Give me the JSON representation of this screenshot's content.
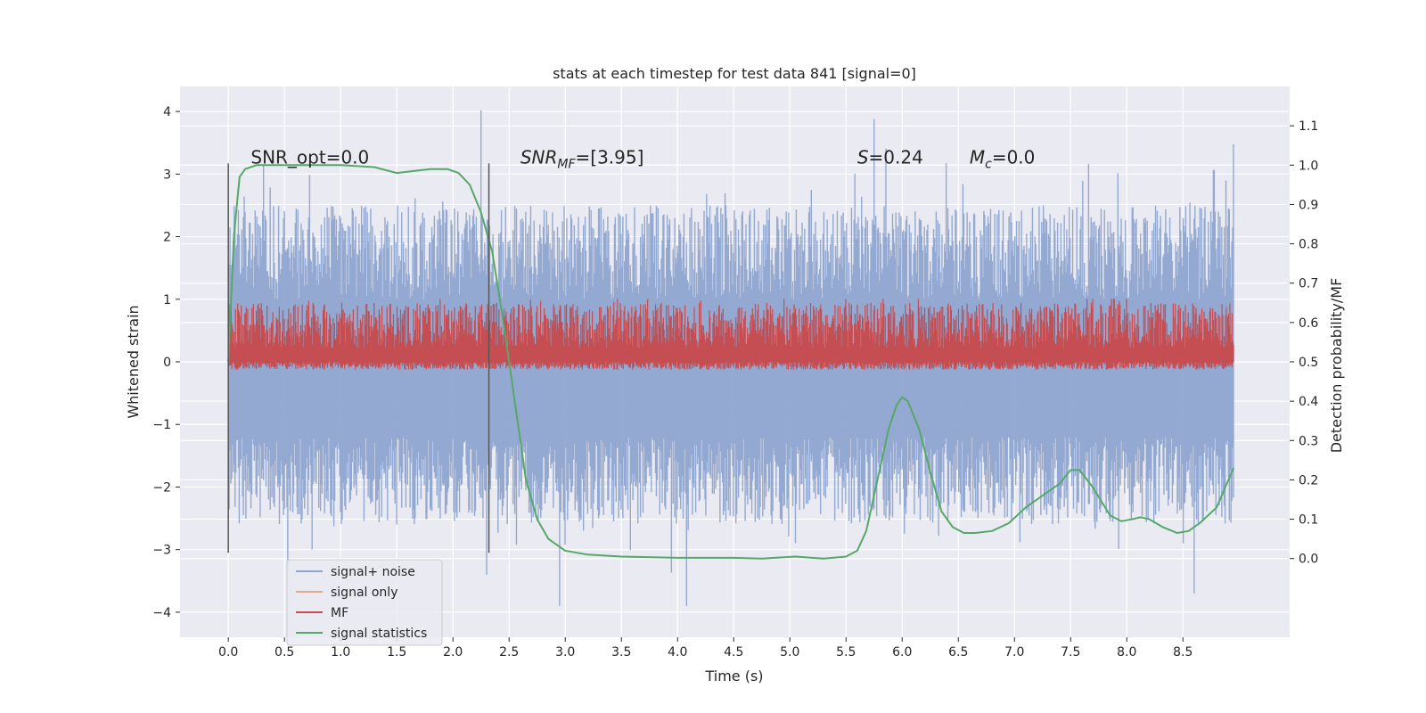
{
  "chart_data": {
    "type": "line",
    "title": "stats at each timestep for test data 841 [signal=0]",
    "xlabel": "Time (s)",
    "ylabel_left": "Whitened strain",
    "ylabel_right": "Detection probability/MF",
    "xlim": [
      -0.43,
      9.45
    ],
    "ylim_left": [
      -4.4,
      4.4
    ],
    "ylim_right": [
      -0.2,
      1.2
    ],
    "x_ticks": [
      0.0,
      0.5,
      1.0,
      1.5,
      2.0,
      2.5,
      3.0,
      3.5,
      4.0,
      4.5,
      5.0,
      5.5,
      6.0,
      6.5,
      7.0,
      7.5,
      8.0,
      8.5
    ],
    "x_tick_labels": [
      "0.0",
      "0.5",
      "1.0",
      "1.5",
      "2.0",
      "2.5",
      "3.0",
      "3.5",
      "4.0",
      "4.5",
      "5.0",
      "5.5",
      "6.0",
      "6.5",
      "7.0",
      "7.5",
      "8.0",
      "8.5"
    ],
    "y_left_ticks": [
      4,
      3,
      2,
      1,
      0,
      -1,
      -2,
      -3,
      -4
    ],
    "y_left_tick_labels": [
      "4",
      "3",
      "2",
      "1",
      "0",
      "−1",
      "−2",
      "−3",
      "−4"
    ],
    "y_right_ticks": [
      1.1,
      1.0,
      0.9,
      0.8,
      0.7,
      0.6,
      0.5,
      0.4,
      0.3,
      0.2,
      0.1,
      0.0
    ],
    "y_right_tick_labels": [
      "1.1",
      "1.0",
      "0.9",
      "0.8",
      "0.7",
      "0.6",
      "0.5",
      "0.4",
      "0.3",
      "0.2",
      "0.1",
      "0.0"
    ],
    "grid": true,
    "noise_series": {
      "name": "signal+ noise",
      "color": "#8fa5cf",
      "x_range": [
        0.0,
        8.95
      ],
      "band_upper_approx": [
        1.0,
        2.5
      ],
      "band_lower_approx": [
        -2.6,
        -1.2
      ],
      "spikes": [
        [
          2.25,
          4.02
        ],
        [
          5.75,
          3.88
        ],
        [
          8.95,
          3.48
        ],
        [
          2.3,
          -3.4
        ],
        [
          4.08,
          -3.9
        ],
        [
          2.95,
          -3.9
        ],
        [
          8.6,
          -3.7
        ]
      ]
    },
    "signal_only_series": {
      "name": "signal only",
      "color": "#e8a68a",
      "value": 0
    },
    "mf_series": {
      "name": "MF",
      "color": "#c44e52",
      "x_range": [
        0.0,
        8.95
      ],
      "range_right_axis": [
        0.48,
        0.65
      ]
    },
    "signal_statistics_series": {
      "name": "signal statistics",
      "color": "#55a868",
      "x": [
        0.0,
        0.05,
        0.1,
        0.15,
        0.25,
        0.5,
        1.0,
        1.3,
        1.5,
        1.65,
        1.8,
        1.95,
        2.05,
        2.15,
        2.25,
        2.35,
        2.45,
        2.55,
        2.65,
        2.75,
        2.85,
        3.0,
        3.2,
        3.5,
        4.0,
        4.5,
        4.75,
        5.05,
        5.3,
        5.5,
        5.6,
        5.68,
        5.78,
        5.88,
        5.95,
        6.0,
        6.05,
        6.15,
        6.25,
        6.35,
        6.45,
        6.55,
        6.65,
        6.8,
        6.95,
        7.1,
        7.25,
        7.4,
        7.5,
        7.58,
        7.7,
        7.85,
        7.95,
        8.05,
        8.12,
        8.2,
        8.32,
        8.45,
        8.55,
        8.65,
        8.8,
        8.95
      ],
      "y": [
        0.5,
        0.82,
        0.97,
        0.99,
        1.0,
        1.0,
        1.0,
        0.995,
        0.98,
        0.985,
        0.99,
        0.99,
        0.98,
        0.95,
        0.88,
        0.78,
        0.6,
        0.4,
        0.2,
        0.1,
        0.05,
        0.02,
        0.01,
        0.005,
        0.002,
        0.002,
        0.0,
        0.005,
        0.0,
        0.005,
        0.02,
        0.07,
        0.2,
        0.33,
        0.39,
        0.41,
        0.4,
        0.33,
        0.22,
        0.12,
        0.08,
        0.065,
        0.065,
        0.07,
        0.09,
        0.13,
        0.16,
        0.19,
        0.225,
        0.225,
        0.18,
        0.11,
        0.095,
        0.1,
        0.105,
        0.1,
        0.08,
        0.065,
        0.07,
        0.09,
        0.13,
        0.23
      ]
    },
    "vertical_markers": [
      {
        "x": 0.0,
        "ylim_left": [
          -3.05,
          3.17
        ]
      },
      {
        "x": 2.32,
        "ylim_left": [
          -3.05,
          3.17
        ]
      }
    ],
    "annotations": [
      {
        "text": "SNR_opt=0.0",
        "x": 0.2
      },
      {
        "text": "SNR",
        "sub": "MF",
        "rest": "=[3.95]",
        "x": 2.6,
        "italic": true
      },
      {
        "text": "S",
        "rest": "=0.24",
        "x": 5.6,
        "italic": true
      },
      {
        "text": "M",
        "sub": "c",
        "rest": "=0.0",
        "x": 6.6,
        "italic": true
      }
    ],
    "legend": {
      "placement": "lower-left",
      "entries": [
        "signal+ noise",
        "signal only",
        "MF",
        "signal statistics"
      ]
    }
  }
}
